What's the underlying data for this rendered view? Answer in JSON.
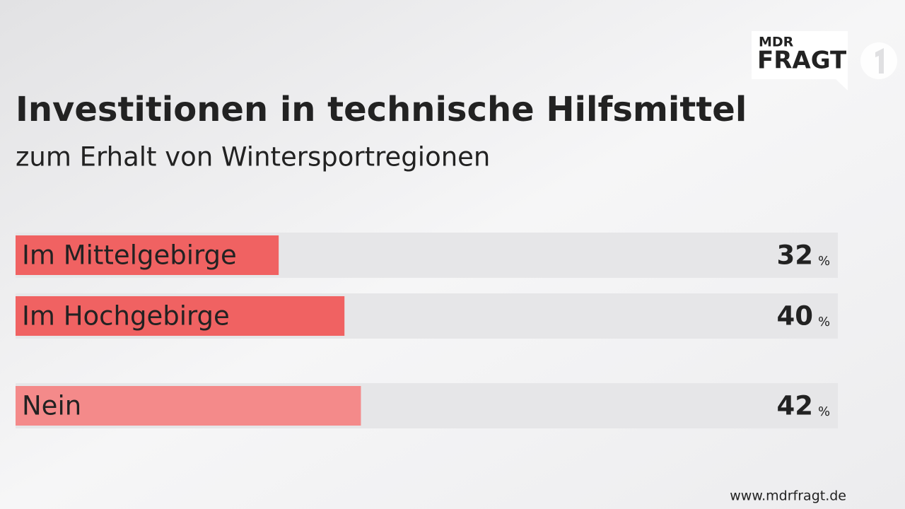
{
  "chart_data": {
    "type": "bar",
    "orientation": "horizontal",
    "title": "Investitionen in technische Hilfsmittel",
    "subtitle": "zum Erhalt von Wintersportregionen",
    "categories": [
      "Im Mittelgebirge",
      "Im Hochgebirge",
      "Nein"
    ],
    "values": [
      32,
      40,
      42
    ],
    "colors": [
      "#f06262",
      "#f06262",
      "#f48a8a"
    ],
    "unit": "%",
    "xlim": [
      0,
      100
    ],
    "source": "www.mdrfragt.de"
  },
  "logo": {
    "top": "MDR",
    "bottom": "FRAGT"
  }
}
